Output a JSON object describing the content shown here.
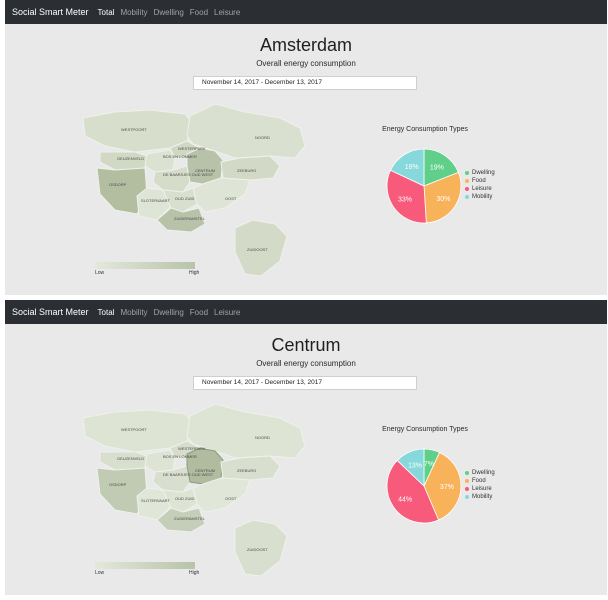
{
  "colors": {
    "navbar": "#2b2f33",
    "page_bg": "#e9e9e9",
    "dwelling": "#5fcf8a",
    "food": "#f8b35a",
    "leisure": "#f85a7c",
    "mobility": "#86d8db",
    "map_low": "#e3e8dc",
    "map_high": "#b8c3a8"
  },
  "screens": [
    {
      "brand": "Social Smart Meter",
      "nav": [
        "Total",
        "Mobility",
        "Dwelling",
        "Food",
        "Leisure"
      ],
      "active_nav": "Total",
      "title": "Amsterdam",
      "subtitle": "Overall energy consumption",
      "date_range": "November 14, 2017 - December 13, 2017",
      "legend": {
        "low": "Low",
        "high": "High"
      },
      "map_labels": [
        "WESTPOORT",
        "NOORD",
        "WESTERPARK",
        "GEUZENVELD",
        "BOS EN LOMMER",
        "DE BAARSJES OUD WEST",
        "CENTRUM",
        "ZEEBURG",
        "OSDORP",
        "SLOTERVAART",
        "OUD ZUID",
        "ZUIDERAMSTEL",
        "OOST",
        "ZUIDOOST"
      ],
      "map_highlight": "",
      "chart_data": {
        "type": "pie",
        "title": "Energy Consumption Types",
        "categories": [
          "Dwelling",
          "Food",
          "Leisure",
          "Mobility"
        ],
        "values": [
          19,
          30,
          33,
          18
        ],
        "labels": [
          "19%",
          "30%",
          "33%",
          "18%"
        ]
      }
    },
    {
      "brand": "Social Smart Meter",
      "nav": [
        "Total",
        "Mobility",
        "Dwelling",
        "Food",
        "Leisure"
      ],
      "active_nav": "Total",
      "title": "Centrum",
      "subtitle": "Overall energy consumption",
      "date_range": "November 14, 2017 - December 13, 2017",
      "legend": {
        "low": "Low",
        "high": "High"
      },
      "map_labels": [
        "WESTPOORT",
        "NOORD",
        "WESTERPARK",
        "GEUZENVELD",
        "BOS EN LOMMER",
        "DE BAARSJES OUD WEST",
        "CENTRUM",
        "ZEEBURG",
        "OSDORP",
        "SLOTERVAART",
        "OUD ZUID",
        "ZUIDERAMSTEL",
        "OOST",
        "ZUIDOOST"
      ],
      "map_highlight": "CENTRUM",
      "chart_data": {
        "type": "pie",
        "title": "Energy Consumption Types",
        "categories": [
          "Dwelling",
          "Food",
          "Leisure",
          "Mobility"
        ],
        "values": [
          7,
          37,
          44,
          13
        ],
        "labels": [
          "7%",
          "37%",
          "44%",
          "13%"
        ]
      }
    }
  ]
}
